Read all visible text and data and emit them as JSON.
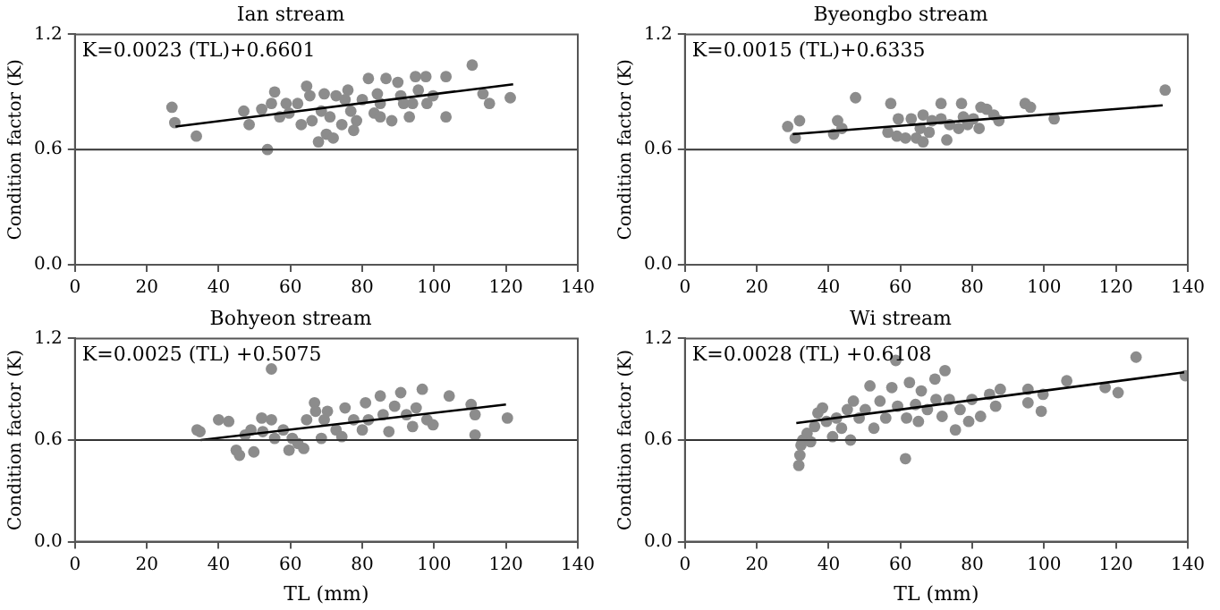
{
  "chart_data": [
    {
      "type": "scatter",
      "title": "Ian stream",
      "ylabel": "Condition factor (K)",
      "xlim": [
        0,
        140
      ],
      "xticks": [
        0,
        20,
        40,
        60,
        80,
        100,
        120,
        140
      ],
      "ylim": [
        0,
        1.2
      ],
      "yticks": [
        {
          "value": 0,
          "label": "0.0"
        },
        {
          "value": 0.6,
          "label": "0.6"
        },
        {
          "value": 1.2,
          "label": "1.2"
        }
      ],
      "ref_lines": [
        {
          "axis": "y",
          "value": 0.6,
          "color": "#333333"
        }
      ],
      "annotations": [
        "K=0.0023 (TL)+0.6601"
      ],
      "marker": "circle",
      "legend": false,
      "grid": false,
      "series": [
        {
          "type": "scatter",
          "color": "#8c8c8c",
          "x": [
            27,
            27.8,
            33.8,
            47,
            48.5,
            53.6,
            55.6,
            52,
            54.7,
            57,
            58.8,
            62,
            64.5,
            65.4,
            66,
            67.8,
            68.6,
            70,
            71.9,
            72.7,
            74.3,
            76,
            76.8,
            78.4,
            80,
            81.7,
            83.3,
            85,
            86.6,
            88.2,
            89.9,
            91.5,
            93.1,
            94.8,
            95.6,
            97.7,
            98,
            99.7,
            103.3,
            103.3,
            110.6,
            113.6,
            115.4,
            121.2,
            69.4,
            75.2,
            84.2,
            90.7,
            94,
            71,
            77.6,
            85,
            63,
            59.6
          ],
          "values": [
            0.82,
            0.74,
            0.67,
            0.8,
            0.73,
            0.6,
            0.9,
            0.81,
            0.84,
            0.77,
            0.84,
            0.84,
            0.93,
            0.88,
            0.75,
            0.64,
            0.8,
            0.68,
            0.66,
            0.88,
            0.73,
            0.91,
            0.8,
            0.75,
            0.86,
            0.97,
            0.79,
            0.84,
            0.97,
            0.75,
            0.95,
            0.84,
            0.77,
            0.98,
            0.91,
            0.98,
            0.84,
            0.88,
            0.98,
            0.77,
            1.04,
            0.89,
            0.84,
            0.87,
            0.89,
            0.86,
            0.89,
            0.88,
            0.84,
            0.77,
            0.7,
            0.77,
            0.73,
            0.79
          ]
        },
        {
          "type": "line",
          "color": "#000000",
          "marker": "none",
          "x": [
            28,
            122
          ],
          "values": [
            0.72,
            0.94
          ]
        }
      ]
    },
    {
      "type": "scatter",
      "title": "Byeongbo stream",
      "ylabel": "Condition factor (K)",
      "xlim": [
        0,
        140
      ],
      "xticks": [
        0,
        20,
        40,
        60,
        80,
        100,
        120,
        140
      ],
      "ylim": [
        0,
        1.2
      ],
      "yticks": [
        {
          "value": 0,
          "label": "0.0"
        },
        {
          "value": 0.6,
          "label": "0.6"
        },
        {
          "value": 1.2,
          "label": "1.2"
        }
      ],
      "ref_lines": [
        {
          "axis": "y",
          "value": 0.6,
          "color": "#333333"
        }
      ],
      "annotations": [
        "K=0.0015 (TL)+0.6335"
      ],
      "marker": "circle",
      "legend": false,
      "grid": false,
      "series": [
        {
          "type": "scatter",
          "color": "#8c8c8c",
          "x": [
            28.6,
            30.7,
            31.9,
            41.4,
            42.5,
            43.7,
            47.5,
            56.5,
            57.3,
            59,
            59.4,
            61.4,
            63,
            64.4,
            65.5,
            66.3,
            66.3,
            68,
            68.8,
            71.3,
            71.3,
            72.9,
            73.7,
            76.2,
            77,
            77.5,
            78.7,
            80.3,
            81.9,
            82.4,
            84,
            86,
            87.4,
            94.7,
            96.2,
            102.8,
            133.7
          ],
          "values": [
            0.72,
            0.66,
            0.75,
            0.68,
            0.75,
            0.71,
            0.87,
            0.69,
            0.84,
            0.67,
            0.76,
            0.66,
            0.76,
            0.66,
            0.71,
            0.64,
            0.78,
            0.69,
            0.75,
            0.84,
            0.76,
            0.65,
            0.73,
            0.71,
            0.84,
            0.77,
            0.73,
            0.76,
            0.71,
            0.82,
            0.81,
            0.78,
            0.75,
            0.84,
            0.82,
            0.76,
            0.91
          ]
        },
        {
          "type": "line",
          "color": "#000000",
          "marker": "none",
          "x": [
            30,
            133
          ],
          "values": [
            0.68,
            0.83
          ]
        }
      ]
    },
    {
      "type": "scatter",
      "title": "Bohyeon stream",
      "xlabel": "TL (mm)",
      "ylabel": "Condition factor (K)",
      "xlim": [
        0,
        140
      ],
      "xticks": [
        0,
        20,
        40,
        60,
        80,
        100,
        120,
        140
      ],
      "ylim": [
        0,
        1.2
      ],
      "yticks": [
        {
          "value": 0,
          "label": "0.0"
        },
        {
          "value": 0.6,
          "label": "0.6"
        },
        {
          "value": 1.2,
          "label": "1.2"
        }
      ],
      "ref_lines": [
        {
          "axis": "y",
          "value": 0.6,
          "color": "#333333"
        }
      ],
      "annotations": [
        "K=0.0025 (TL) +0.5075"
      ],
      "marker": "circle",
      "legend": false,
      "grid": false,
      "series": [
        {
          "type": "scatter",
          "color": "#8c8c8c",
          "x": [
            34,
            34.8,
            40,
            42.8,
            44.9,
            45.8,
            47.4,
            49,
            49.8,
            52,
            52.3,
            54.7,
            54.7,
            55.6,
            58,
            59.6,
            60.5,
            62.1,
            63.7,
            64.5,
            66.7,
            67,
            68.6,
            69.4,
            70.3,
            72.7,
            74.3,
            75.2,
            77.6,
            80,
            80.9,
            81.7,
            85,
            85.8,
            87.4,
            89,
            90.7,
            92.3,
            94,
            95,
            96.7,
            98,
            99.7,
            104.2,
            110.3,
            111.4,
            111.4,
            120.4
          ],
          "values": [
            0.66,
            0.65,
            0.72,
            0.71,
            0.54,
            0.51,
            0.63,
            0.66,
            0.53,
            0.73,
            0.65,
            1.02,
            0.72,
            0.61,
            0.66,
            0.54,
            0.61,
            0.58,
            0.55,
            0.72,
            0.82,
            0.77,
            0.61,
            0.72,
            0.77,
            0.66,
            0.62,
            0.79,
            0.72,
            0.66,
            0.82,
            0.72,
            0.86,
            0.75,
            0.65,
            0.8,
            0.88,
            0.75,
            0.68,
            0.79,
            0.9,
            0.72,
            0.69,
            0.86,
            0.81,
            0.75,
            0.63,
            0.73
          ]
        },
        {
          "type": "line",
          "color": "#000000",
          "marker": "none",
          "x": [
            35,
            120
          ],
          "values": [
            0.6,
            0.81
          ]
        }
      ]
    },
    {
      "type": "scatter",
      "title": "Wi stream",
      "xlabel": "TL (mm)",
      "ylabel": "Condition factor (K)",
      "xlim": [
        0,
        140
      ],
      "xticks": [
        0,
        20,
        40,
        60,
        80,
        100,
        120,
        140
      ],
      "ylim": [
        0,
        1.2
      ],
      "yticks": [
        {
          "value": 0,
          "label": "0.0"
        },
        {
          "value": 0.6,
          "label": "0.6"
        },
        {
          "value": 1.2,
          "label": "1.2"
        }
      ],
      "ref_lines": [
        {
          "axis": "y",
          "value": 0.6,
          "color": "#333333"
        }
      ],
      "annotations": [
        "K=0.0028 (TL) +0.6108"
      ],
      "marker": "circle",
      "legend": false,
      "grid": false,
      "series": [
        {
          "type": "scatter",
          "color": "#8c8c8c",
          "x": [
            31.7,
            32,
            32.3,
            32.8,
            34,
            35,
            36.1,
            37,
            38.3,
            39.4,
            41.1,
            42.2,
            43.6,
            45.2,
            46.1,
            46.9,
            48.5,
            50.2,
            51.5,
            52.6,
            54.3,
            55.9,
            57.6,
            58.7,
            59.2,
            61.4,
            61.7,
            62.5,
            64.2,
            65,
            65.8,
            67.5,
            69.6,
            69.9,
            71.6,
            72.4,
            73.6,
            75.3,
            76.6,
            79,
            79.9,
            82.3,
            84.8,
            86.5,
            87.8,
            95.5,
            95.5,
            99.2,
            99.7,
            106.3,
            117,
            120.6,
            125.6,
            139.3
          ],
          "values": [
            0.45,
            0.51,
            0.57,
            0.6,
            0.64,
            0.59,
            0.68,
            0.76,
            0.79,
            0.71,
            0.62,
            0.73,
            0.67,
            0.78,
            0.6,
            0.83,
            0.73,
            0.78,
            0.92,
            0.67,
            0.83,
            0.73,
            0.91,
            1.07,
            0.8,
            0.49,
            0.73,
            0.94,
            0.81,
            0.71,
            0.89,
            0.78,
            0.96,
            0.84,
            0.74,
            1.01,
            0.84,
            0.66,
            0.78,
            0.71,
            0.84,
            0.74,
            0.87,
            0.8,
            0.9,
            0.9,
            0.82,
            0.77,
            0.87,
            0.95,
            0.91,
            0.88,
            1.09,
            0.98
          ]
        },
        {
          "type": "line",
          "color": "#000000",
          "marker": "none",
          "x": [
            31,
            139
          ],
          "values": [
            0.7,
            1.0
          ]
        }
      ]
    }
  ]
}
